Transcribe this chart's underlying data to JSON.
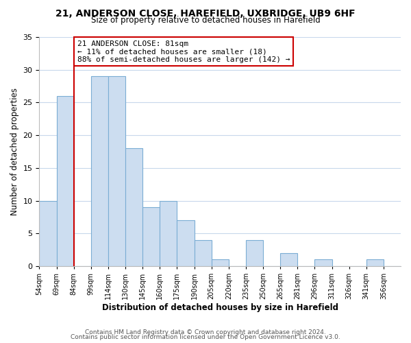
{
  "title_line1": "21, ANDERSON CLOSE, HAREFIELD, UXBRIDGE, UB9 6HF",
  "title_line2": "Size of property relative to detached houses in Harefield",
  "xlabel": "Distribution of detached houses by size in Harefield",
  "ylabel": "Number of detached properties",
  "footer_line1": "Contains HM Land Registry data © Crown copyright and database right 2024.",
  "footer_line2": "Contains public sector information licensed under the Open Government Licence v3.0.",
  "bin_labels": [
    "54sqm",
    "69sqm",
    "84sqm",
    "99sqm",
    "114sqm",
    "130sqm",
    "145sqm",
    "160sqm",
    "175sqm",
    "190sqm",
    "205sqm",
    "220sqm",
    "235sqm",
    "250sqm",
    "265sqm",
    "281sqm",
    "296sqm",
    "311sqm",
    "326sqm",
    "341sqm",
    "356sqm"
  ],
  "bar_heights": [
    10,
    26,
    0,
    29,
    29,
    18,
    9,
    10,
    7,
    4,
    1,
    0,
    4,
    0,
    2,
    0,
    1,
    0,
    0,
    1,
    0
  ],
  "bar_color": "#ccddf0",
  "bar_edge_color": "#7badd4",
  "vline_x": 2,
  "vline_color": "#cc0000",
  "annotation_text": "21 ANDERSON CLOSE: 81sqm\n← 11% of detached houses are smaller (18)\n88% of semi-detached houses are larger (142) →",
  "annotation_box_color": "#ffffff",
  "annotation_box_edge": "#cc0000",
  "ylim": [
    0,
    35
  ],
  "yticks": [
    0,
    5,
    10,
    15,
    20,
    25,
    30,
    35
  ],
  "background_color": "#ffffff",
  "grid_color": "#c8d8ec"
}
